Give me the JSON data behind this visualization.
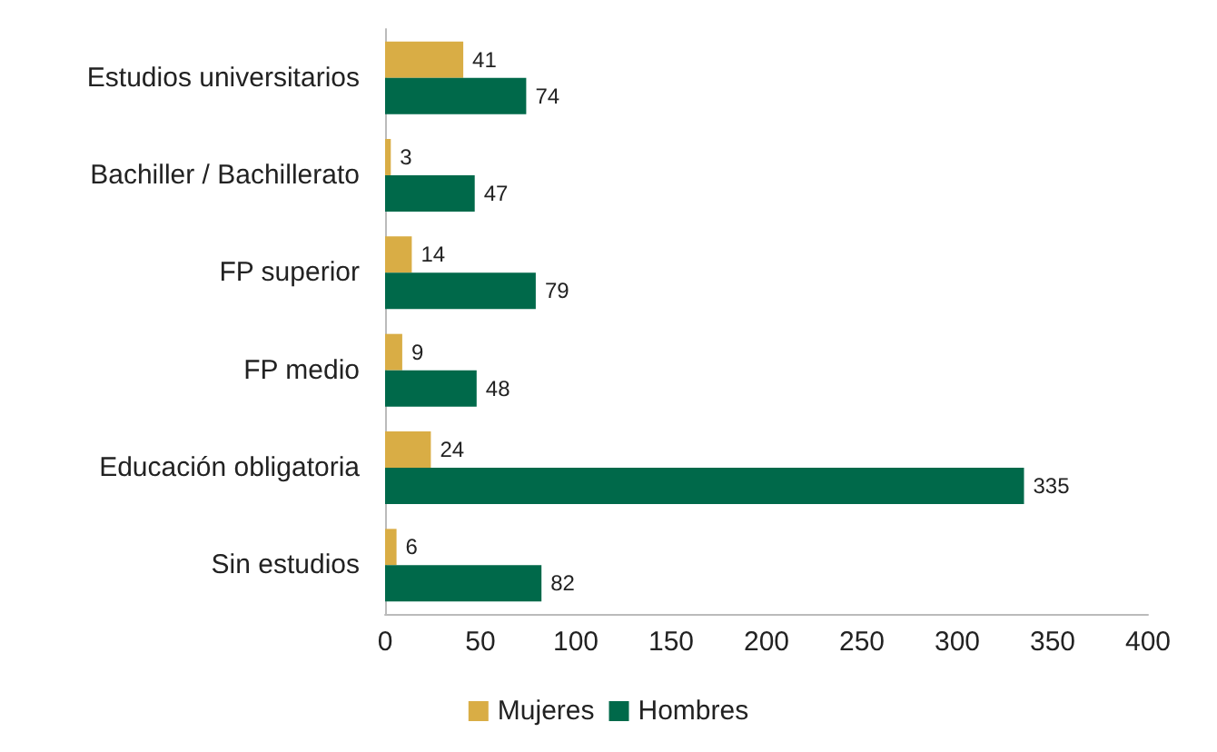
{
  "chart_data": {
    "type": "bar",
    "orientation": "horizontal",
    "categories": [
      "Estudios universitarios",
      "Bachiller / Bachillerato",
      "FP superior",
      "FP medio",
      "Educación obligatoria",
      "Sin estudios"
    ],
    "series": [
      {
        "name": "Mujeres",
        "color": "#d9ad45",
        "values": [
          41,
          3,
          14,
          9,
          24,
          6
        ]
      },
      {
        "name": "Hombres",
        "color": "#00694a",
        "values": [
          74,
          47,
          79,
          48,
          335,
          82
        ]
      }
    ],
    "xlim": [
      0,
      400
    ],
    "xticks": [
      0,
      50,
      100,
      150,
      200,
      250,
      300,
      350,
      400
    ],
    "grid": false,
    "legend": "bottom",
    "data_labels": true
  }
}
